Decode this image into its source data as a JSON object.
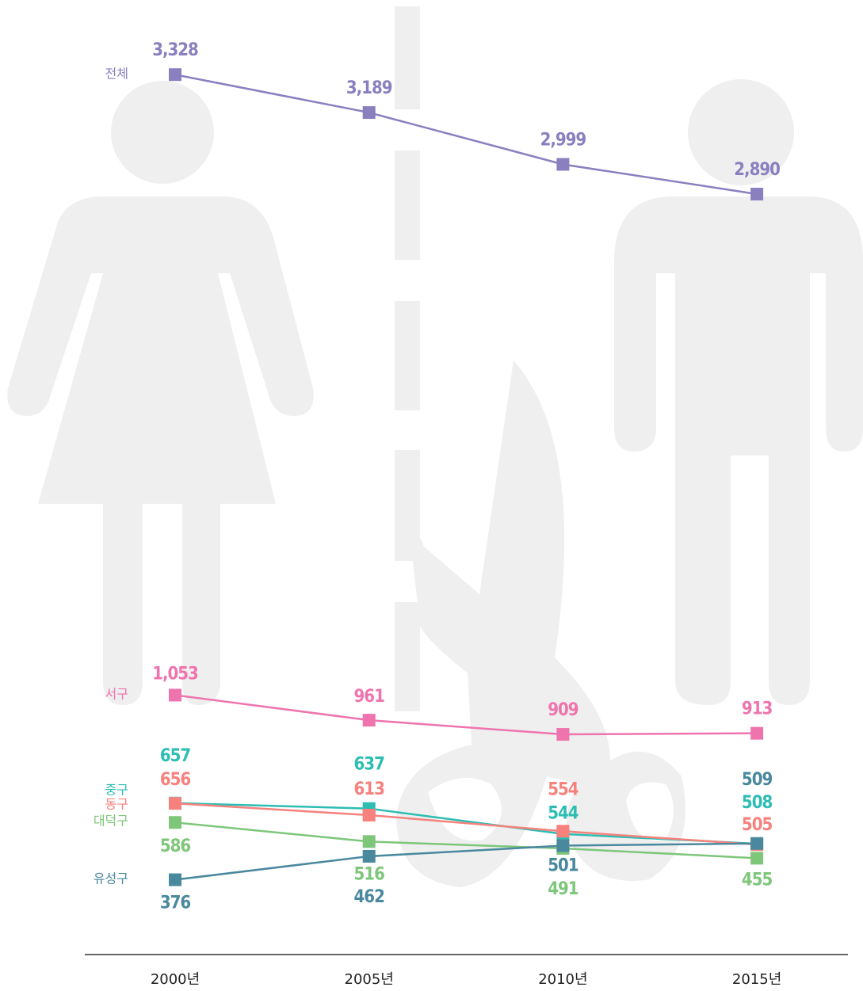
{
  "chart_data": {
    "type": "line",
    "categories": [
      "2000년",
      "2005년",
      "2010년",
      "2015년"
    ],
    "ylim": [
      0,
      3500
    ],
    "series": [
      {
        "name": "전체",
        "color": "#8a7fbf",
        "values": [
          3328,
          3189,
          2999,
          2890
        ],
        "value_labels": [
          "3,328",
          "3,189",
          "2,999",
          "2,890"
        ]
      },
      {
        "name": "서구",
        "color": "#ef74ae",
        "values": [
          1053,
          961,
          909,
          913
        ],
        "value_labels": [
          "1,053",
          "961",
          "909",
          "913"
        ]
      },
      {
        "name": "중구",
        "color": "#2dbdb3",
        "values": [
          657,
          637,
          544,
          508
        ]
      },
      {
        "name": "동구",
        "color": "#f6817d",
        "values": [
          656,
          613,
          554,
          505
        ]
      },
      {
        "name": "대덕구",
        "color": "#7dc67a",
        "values": [
          586,
          516,
          491,
          455
        ]
      },
      {
        "name": "유성구",
        "color": "#4a889e",
        "values": [
          376,
          462,
          501,
          509
        ]
      }
    ]
  }
}
